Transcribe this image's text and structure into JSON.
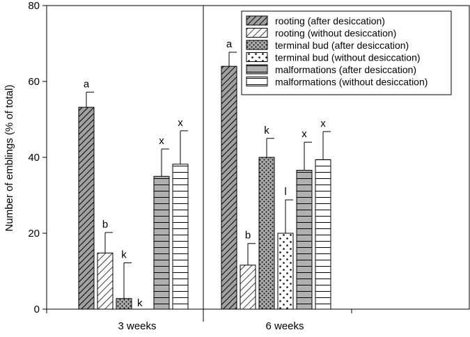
{
  "chart_data": {
    "type": "bar",
    "categories": [
      "3 weeks",
      "6 weeks"
    ],
    "ylabel": "Number of emblings (% of total)",
    "ylim": [
      0,
      80
    ],
    "yticks": [
      0,
      20,
      40,
      60,
      80
    ],
    "grid": false,
    "legend_position": "top-right",
    "series": [
      {
        "name": "rooting (after desiccation)",
        "pattern": "hatch-dense",
        "fill": "#a0a0a0",
        "values": [
          53.2,
          64.0
        ],
        "errors": [
          4.0,
          3.7
        ],
        "letters": [
          "a",
          "a"
        ]
      },
      {
        "name": "rooting (without desiccation)",
        "pattern": "hatch-sparse",
        "fill": "#ffffff",
        "values": [
          14.8,
          11.6
        ],
        "errors": [
          5.4,
          5.7
        ],
        "letters": [
          "b",
          "b"
        ]
      },
      {
        "name": "terminal bud (after desiccation)",
        "pattern": "dots-dense",
        "fill": "#a8a8a8",
        "values": [
          2.8,
          40.0
        ],
        "errors": [
          9.4,
          5.0
        ],
        "letters": [
          "k",
          "k"
        ]
      },
      {
        "name": "terminal bud (without desiccation)",
        "pattern": "dots-sparse",
        "fill": "#ffffff",
        "values": [
          0.0,
          20.0
        ],
        "errors": [
          0.0,
          8.8
        ],
        "letters": [
          "k",
          "l"
        ]
      },
      {
        "name": "malformations (after desiccation)",
        "pattern": "hlines-dense",
        "fill": "#b0b0b0",
        "values": [
          35.0,
          36.6
        ],
        "errors": [
          7.2,
          7.4
        ],
        "letters": [
          "x",
          "x"
        ]
      },
      {
        "name": "malformations (without desiccation)",
        "pattern": "hlines-sparse",
        "fill": "#ffffff",
        "values": [
          38.2,
          39.4
        ],
        "errors": [
          8.8,
          7.4
        ],
        "letters": [
          "x",
          "x"
        ]
      }
    ]
  }
}
